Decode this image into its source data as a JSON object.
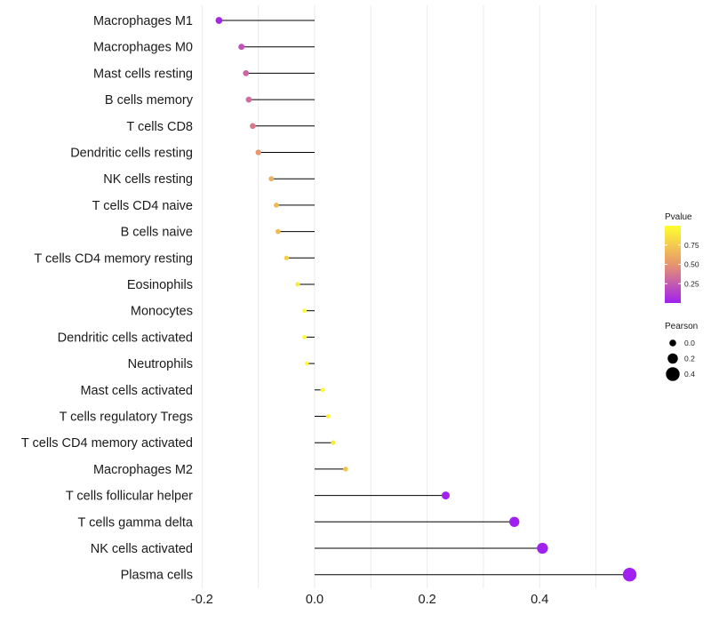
{
  "chart_data": {
    "type": "lollipop",
    "title": "",
    "xlabel": "",
    "ylabel": "",
    "xlim": [
      -0.2,
      0.55
    ],
    "xticks": [
      -0.2,
      0.0,
      0.2,
      0.4
    ],
    "xtick_labels": [
      "-0.2",
      "0.0",
      "0.2",
      "0.4"
    ],
    "grid": true,
    "categories": [
      "Macrophages M1",
      "Macrophages M0",
      "Mast cells resting",
      "B cells memory",
      "T cells CD8",
      "Dendritic cells resting",
      "NK cells resting",
      "T cells CD4 naive",
      "B cells naive",
      "T cells CD4 memory resting",
      "Eosinophils",
      "Monocytes",
      "Dendritic cells activated",
      "Neutrophils",
      "Mast cells activated",
      "T cells regulatory  Tregs ",
      "T cells CD4 memory activated",
      "Macrophages M2",
      "T cells follicular helper",
      "T cells gamma delta",
      "NK cells activated",
      "Plasma cells"
    ],
    "values": [
      -0.17,
      -0.13,
      -0.122,
      -0.117,
      -0.11,
      -0.1,
      -0.077,
      -0.068,
      -0.065,
      -0.05,
      -0.03,
      -0.018,
      -0.018,
      -0.014,
      0.014,
      0.024,
      0.033,
      0.055,
      0.233,
      0.355,
      0.405,
      0.56
    ],
    "pvalues": [
      0.03,
      0.22,
      0.3,
      0.33,
      0.38,
      0.5,
      0.62,
      0.67,
      0.68,
      0.78,
      0.9,
      0.97,
      0.97,
      0.98,
      0.98,
      0.94,
      0.9,
      0.72,
      0.01,
      0.0,
      0.0,
      0.0
    ],
    "legend": {
      "position": "right",
      "color": {
        "title": "Pvalue",
        "ticks": [
          0.75,
          0.5,
          0.25
        ],
        "tick_labels": [
          "0.75",
          "0.50",
          "0.25"
        ],
        "low_color": "#A020F0",
        "mid_color": "#E8956E",
        "high_color": "#FFFF2E"
      },
      "size": {
        "title": "Pearson",
        "values": [
          0.0,
          0.2,
          0.4
        ],
        "labels": [
          "0.0",
          "0.2",
          "0.4"
        ]
      }
    }
  }
}
